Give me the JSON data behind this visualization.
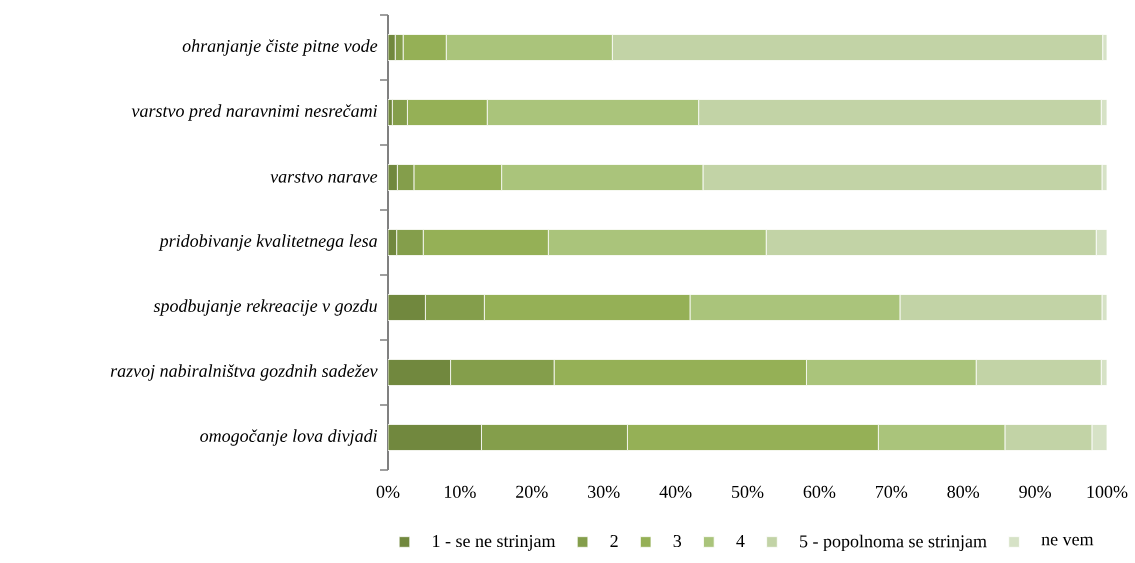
{
  "chart_data": {
    "type": "bar",
    "orientation": "horizontal",
    "stacked": true,
    "categories": [
      "ohranjanje čiste pitne vode",
      "varstvo pred naravnimi nesrečami",
      "varstvo narave",
      "pridobivanje kvalitetnega lesa",
      "spodbujanje rekreacije v gozdu",
      "razvoj nabiralništva gozdnih sadežev",
      "omogočanje lova divjadi"
    ],
    "series": [
      {
        "name": "1 - se ne strinjam",
        "color": "#71883e",
        "values": [
          1.0,
          0.6,
          1.3,
          1.2,
          5.2,
          8.7,
          13.0
        ]
      },
      {
        "name": "2",
        "color": "#849e4b",
        "values": [
          1.1,
          2.1,
          2.3,
          3.7,
          8.2,
          14.4,
          20.3
        ]
      },
      {
        "name": "3",
        "color": "#95b056",
        "values": [
          6.0,
          11.1,
          12.2,
          17.4,
          28.6,
          35.1,
          34.9
        ]
      },
      {
        "name": "4",
        "color": "#aac47b",
        "values": [
          23.1,
          29.4,
          28.0,
          30.3,
          29.2,
          23.6,
          17.6
        ]
      },
      {
        "name": "5 - popolnoma se strinjam",
        "color": "#c2d3a6",
        "values": [
          68.2,
          56.0,
          55.5,
          45.9,
          28.1,
          17.4,
          12.1
        ]
      },
      {
        "name": "ne vem",
        "color": "#d6e2c6",
        "values": [
          0.6,
          0.8,
          0.7,
          1.5,
          0.7,
          0.8,
          2.1
        ]
      }
    ],
    "xlim": [
      0,
      100
    ],
    "xticks": [
      {
        "value": 0,
        "label": "0%"
      },
      {
        "value": 10,
        "label": "10%"
      },
      {
        "value": 20,
        "label": "20%"
      },
      {
        "value": 30,
        "label": "30%"
      },
      {
        "value": 40,
        "label": "40%"
      },
      {
        "value": 50,
        "label": "50%"
      },
      {
        "value": 60,
        "label": "60%"
      },
      {
        "value": 70,
        "label": "70%"
      },
      {
        "value": 80,
        "label": "80%"
      },
      {
        "value": 90,
        "label": "90%"
      },
      {
        "value": 100,
        "label": "100%"
      }
    ],
    "grid": false,
    "legend": "bottom"
  }
}
